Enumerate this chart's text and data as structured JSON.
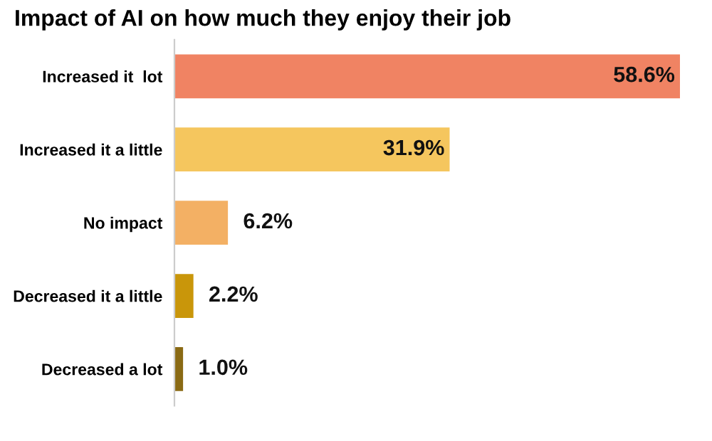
{
  "chart_data": {
    "type": "bar",
    "orientation": "horizontal",
    "title": "Impact of AI on how much they enjoy their job",
    "categories": [
      "Increased it  lot",
      "Increased it a little",
      "No impact",
      "Decreased it a little",
      "Decreased a lot"
    ],
    "values": [
      58.6,
      31.9,
      6.2,
      2.2,
      1.0
    ],
    "colors": [
      "#f08363",
      "#f5c65e",
      "#f3b064",
      "#c9960a",
      "#8a6a14"
    ],
    "value_labels": [
      "58.6%",
      "31.9%",
      "6.2%",
      "2.2%",
      "1.0%"
    ],
    "grid": false,
    "legend": false
  }
}
